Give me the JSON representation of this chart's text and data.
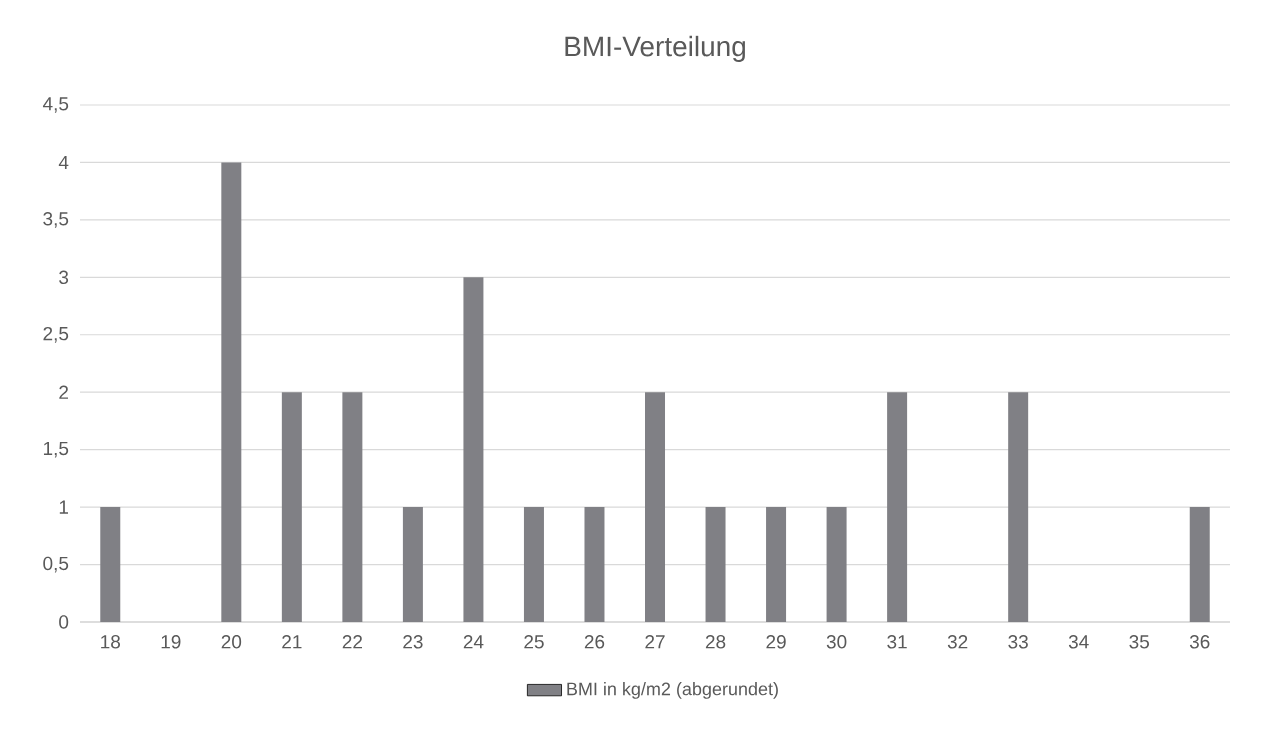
{
  "chart_data": {
    "type": "bar",
    "title": "BMI-Verteilung",
    "categories": [
      "18",
      "19",
      "20",
      "21",
      "22",
      "23",
      "24",
      "25",
      "26",
      "27",
      "28",
      "29",
      "30",
      "31",
      "32",
      "33",
      "34",
      "35",
      "36"
    ],
    "series": [
      {
        "name": "BMI in kg/m2 (abgerundet)",
        "color": "#808085",
        "values": [
          1,
          0,
          4,
          2,
          2,
          1,
          3,
          1,
          1,
          2,
          1,
          1,
          1,
          2,
          0,
          2,
          0,
          0,
          1
        ]
      }
    ],
    "ylim": [
      0,
      4.5
    ],
    "yticks": [
      0,
      {
        "value": 0.5,
        "label": "0,5"
      },
      1,
      {
        "value": 1.5,
        "label": "1,5"
      },
      2,
      {
        "value": 2.5,
        "label": "2,5"
      },
      3,
      {
        "value": 3.5,
        "label": "3,5"
      },
      4,
      {
        "value": 4.5,
        "label": "4,5"
      }
    ],
    "grid": "y",
    "legend": "bottom"
  }
}
